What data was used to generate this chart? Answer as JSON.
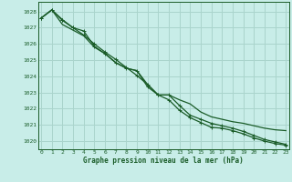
{
  "title": "Graphe pression niveau de la mer (hPa)",
  "background_color": "#c8ede8",
  "grid_color": "#aad4cc",
  "line_color": "#1a5c28",
  "xlim": [
    -0.3,
    23.3
  ],
  "ylim": [
    1019.5,
    1028.6
  ],
  "yticks": [
    1020,
    1021,
    1022,
    1023,
    1024,
    1025,
    1026,
    1027,
    1028
  ],
  "xticks": [
    0,
    1,
    2,
    3,
    4,
    5,
    6,
    7,
    8,
    9,
    10,
    11,
    12,
    13,
    14,
    15,
    16,
    17,
    18,
    19,
    20,
    21,
    22,
    23
  ],
  "series1_x": [
    0,
    1,
    2,
    3,
    4,
    5,
    6,
    7,
    8,
    9,
    10,
    11,
    12,
    13,
    14,
    15,
    16,
    17,
    18,
    19,
    20,
    21,
    22,
    23
  ],
  "series1_y": [
    1027.6,
    1028.1,
    1027.45,
    1027.0,
    1026.55,
    1026.0,
    1025.5,
    1025.05,
    1024.55,
    1024.05,
    1023.5,
    1022.85,
    1022.85,
    1022.2,
    1021.6,
    1021.35,
    1021.1,
    1020.95,
    1020.8,
    1020.6,
    1020.35,
    1020.1,
    1019.95,
    1019.8
  ],
  "series2_x": [
    0,
    1,
    2,
    3,
    4,
    5,
    6,
    7,
    8,
    9,
    10,
    11,
    12,
    13,
    14,
    15,
    16,
    17,
    18,
    19,
    20,
    21,
    22,
    23
  ],
  "series2_y": [
    1027.6,
    1028.1,
    1027.2,
    1026.85,
    1026.5,
    1025.8,
    1025.4,
    1024.85,
    1024.5,
    1024.35,
    1023.5,
    1022.85,
    1022.85,
    1022.55,
    1022.3,
    1021.8,
    1021.5,
    1021.35,
    1021.2,
    1021.1,
    1020.95,
    1020.8,
    1020.7,
    1020.65
  ],
  "series3_x": [
    0,
    1,
    2,
    3,
    4,
    5,
    6,
    7,
    8,
    9,
    10,
    11,
    12,
    13,
    14,
    15,
    16,
    17,
    18,
    19,
    20,
    21,
    22,
    23
  ],
  "series3_y": [
    1027.6,
    1028.1,
    1027.5,
    1027.0,
    1026.8,
    1025.85,
    1025.4,
    1024.85,
    1024.5,
    1024.35,
    1023.35,
    1022.85,
    1022.55,
    1021.9,
    1021.45,
    1021.15,
    1020.85,
    1020.8,
    1020.65,
    1020.45,
    1020.2,
    1020.0,
    1019.85,
    1019.75
  ]
}
